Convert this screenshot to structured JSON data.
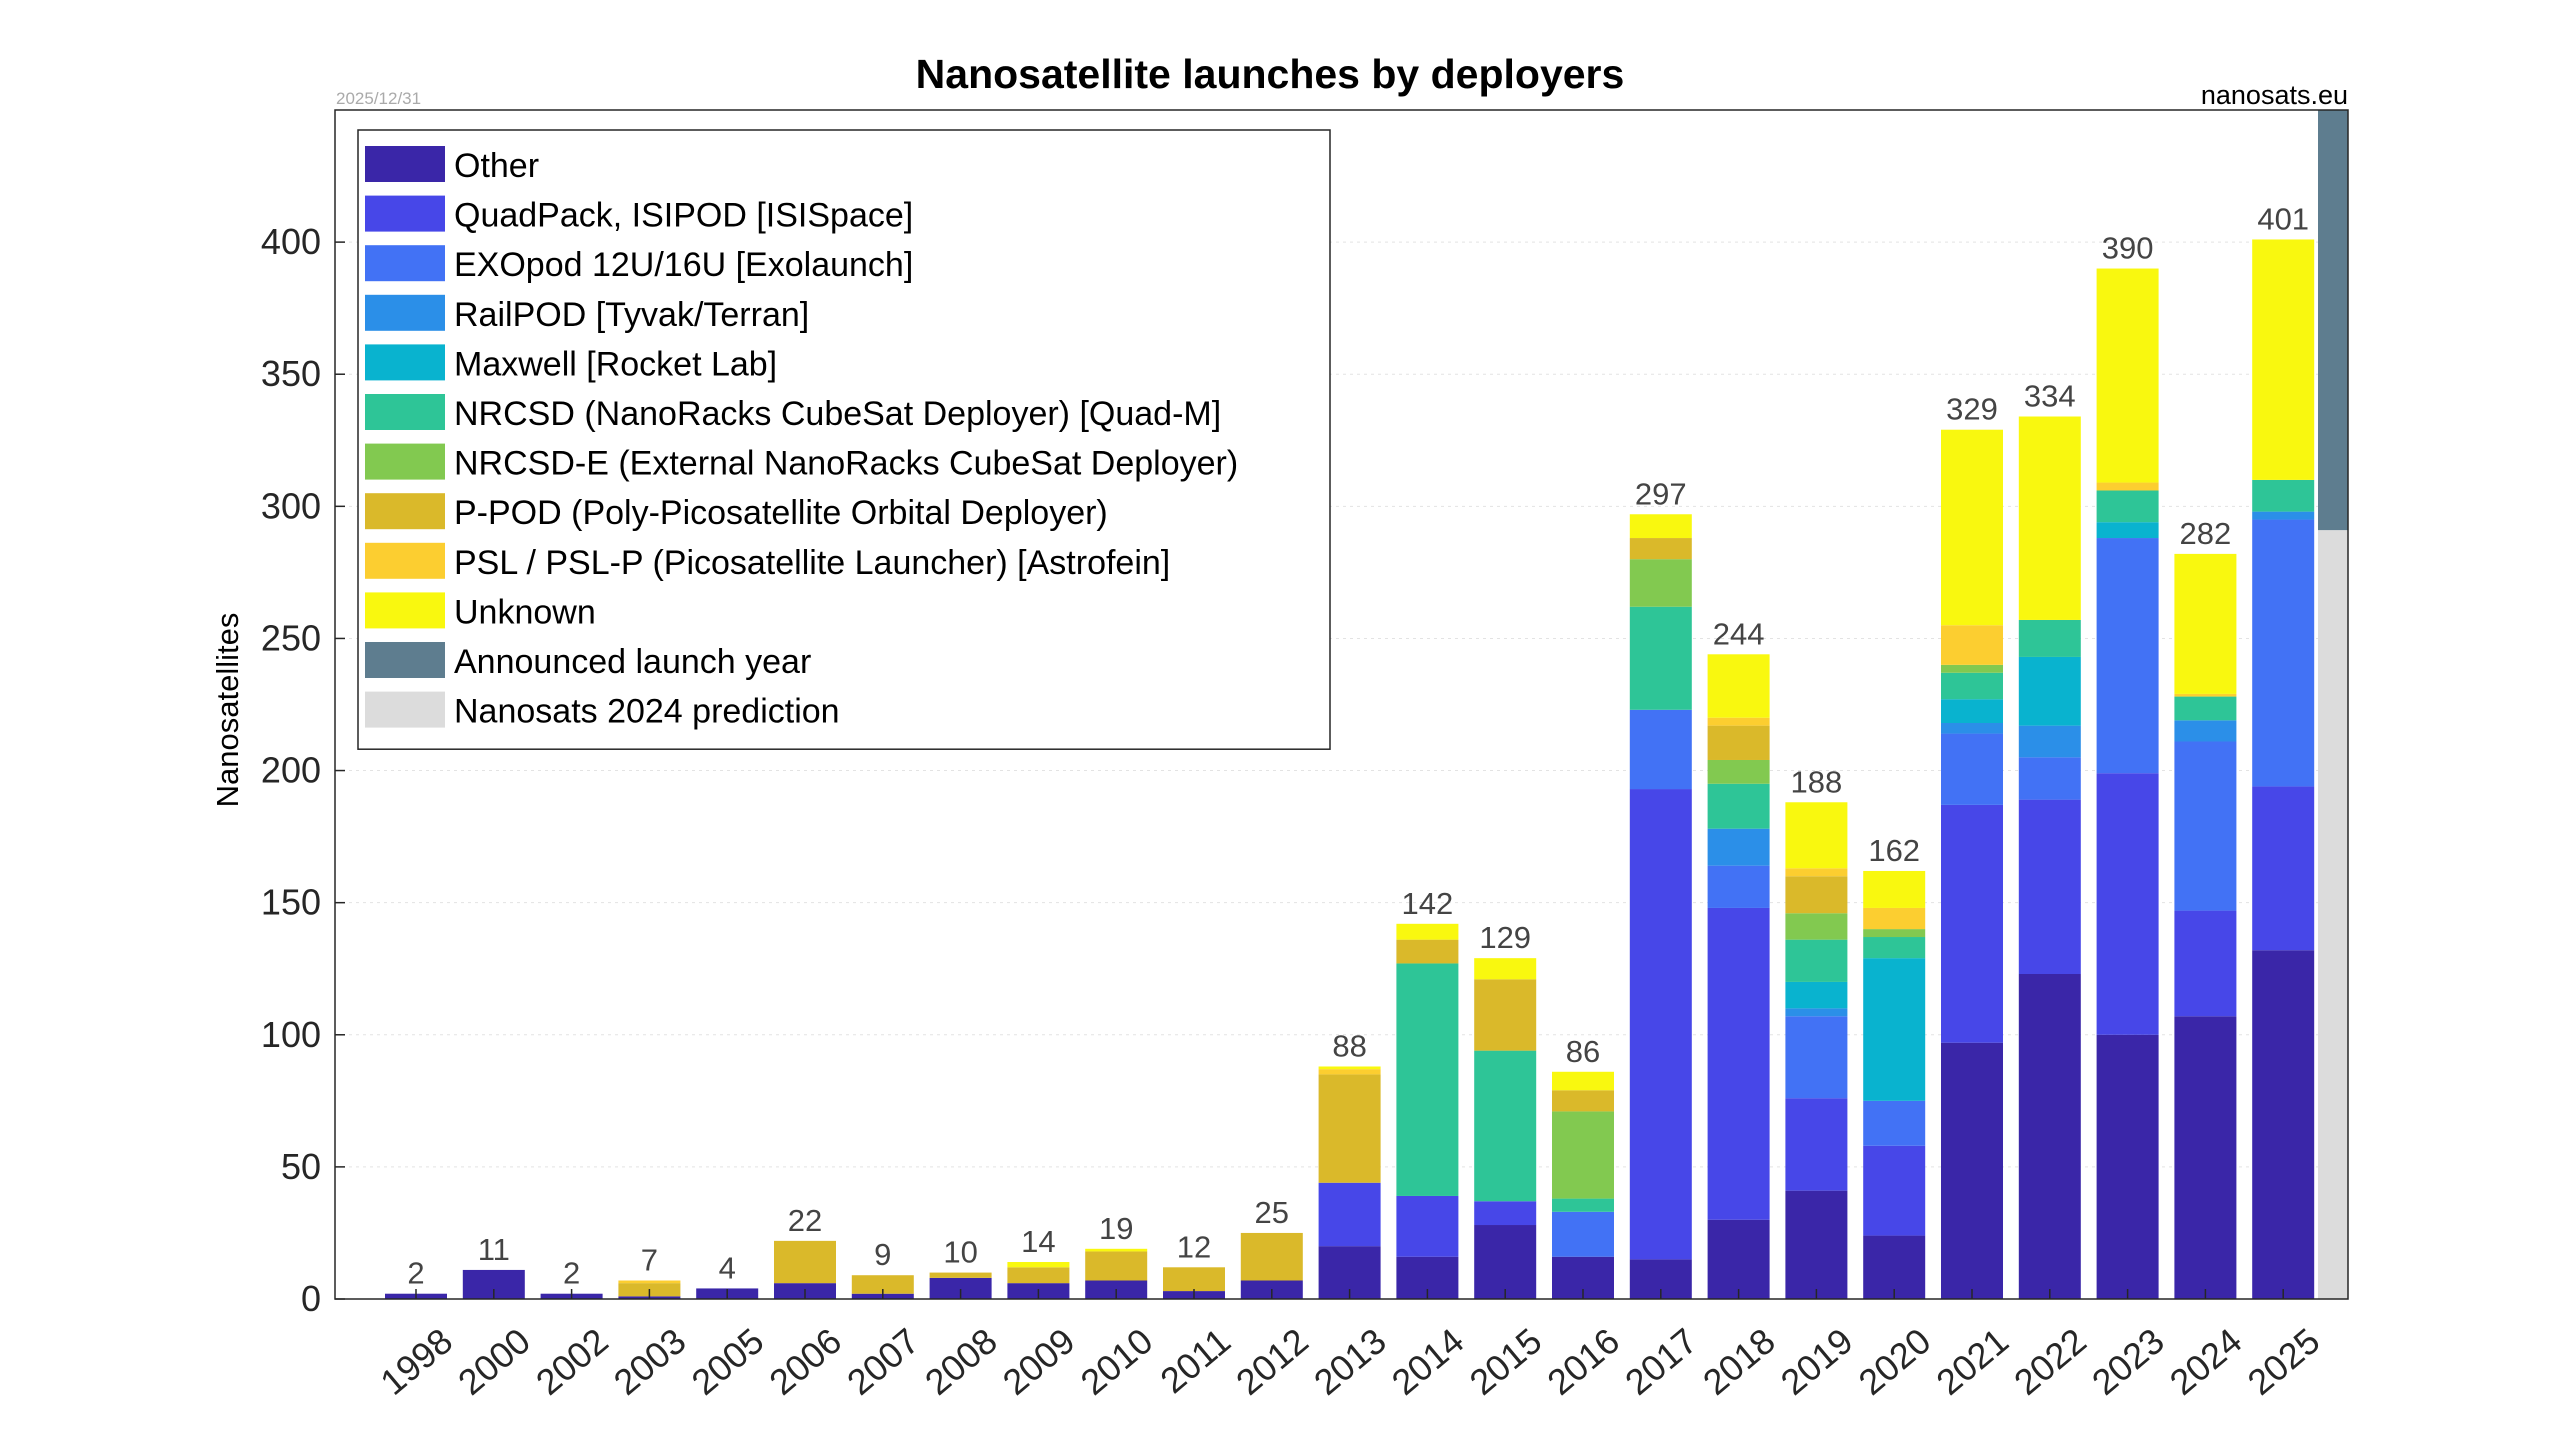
{
  "date": "2025/12/31",
  "source": "nanosats.eu",
  "chart_data": {
    "type": "bar",
    "stacked": true,
    "title": "Nanosatellite launches by deployers",
    "xlabel": "",
    "ylabel": "Nanosatellites",
    "ylim": [
      0,
      450
    ],
    "yticks": [
      0,
      50,
      100,
      150,
      200,
      250,
      300,
      350,
      400
    ],
    "grid": true,
    "legend_position": "top-left",
    "categories": [
      "1998",
      "2000",
      "2002",
      "2003",
      "2005",
      "2006",
      "2007",
      "2008",
      "2009",
      "2010",
      "2011",
      "2012",
      "2013",
      "2014",
      "2015",
      "2016",
      "2017",
      "2018",
      "2019",
      "2020",
      "2021",
      "2022",
      "2023",
      "2024",
      "2025"
    ],
    "totals": [
      2,
      11,
      2,
      7,
      4,
      22,
      9,
      10,
      14,
      19,
      12,
      25,
      88,
      142,
      129,
      86,
      297,
      244,
      188,
      162,
      329,
      334,
      390,
      282,
      401
    ],
    "series": [
      {
        "name": "Other",
        "color": "#3a26a8",
        "values": [
          2,
          11,
          2,
          1,
          4,
          6,
          2,
          8,
          6,
          7,
          3,
          7,
          20,
          16,
          28,
          16,
          15,
          30,
          41,
          24,
          97,
          123,
          100,
          107,
          132
        ]
      },
      {
        "name": "QuadPack, ISIPOD [ISISpace]",
        "color": "#4747e8",
        "values": [
          0,
          0,
          0,
          0,
          0,
          0,
          0,
          0,
          0,
          0,
          0,
          0,
          24,
          23,
          9,
          0,
          178,
          118,
          35,
          34,
          90,
          66,
          99,
          40,
          62
        ]
      },
      {
        "name": "EXOpod 12U/16U [Exolaunch]",
        "color": "#4272f5",
        "values": [
          0,
          0,
          0,
          0,
          0,
          0,
          0,
          0,
          0,
          0,
          0,
          0,
          0,
          0,
          0,
          17,
          30,
          16,
          31,
          17,
          27,
          16,
          89,
          64,
          101
        ]
      },
      {
        "name": "RailPOD [Tyvak/Terran]",
        "color": "#2b8fe8",
        "values": [
          0,
          0,
          0,
          0,
          0,
          0,
          0,
          0,
          0,
          0,
          0,
          0,
          0,
          0,
          0,
          0,
          0,
          14,
          3,
          0,
          4,
          12,
          0,
          8,
          3
        ]
      },
      {
        "name": "Maxwell [Rocket Lab]",
        "color": "#09b3cf",
        "values": [
          0,
          0,
          0,
          0,
          0,
          0,
          0,
          0,
          0,
          0,
          0,
          0,
          0,
          0,
          0,
          0,
          0,
          0,
          10,
          54,
          9,
          26,
          6,
          0,
          0
        ]
      },
      {
        "name": "NRCSD (NanoRacks CubeSat Deployer)  [Quad-M]",
        "color": "#2ec597",
        "values": [
          0,
          0,
          0,
          0,
          0,
          0,
          0,
          0,
          0,
          0,
          0,
          0,
          0,
          88,
          57,
          5,
          39,
          17,
          16,
          8,
          10,
          14,
          12,
          9,
          12
        ]
      },
      {
        "name": "NRCSD-E (External NanoRacks CubeSat Deployer)",
        "color": "#82c950",
        "values": [
          0,
          0,
          0,
          0,
          0,
          0,
          0,
          0,
          0,
          0,
          0,
          0,
          0,
          0,
          0,
          33,
          18,
          9,
          10,
          3,
          3,
          0,
          0,
          0,
          0
        ]
      },
      {
        "name": "P-POD (Poly-Picosatellite Orbital Deployer)",
        "color": "#dab92a",
        "values": [
          0,
          0,
          0,
          5,
          0,
          16,
          7,
          2,
          6,
          11,
          9,
          18,
          41,
          9,
          27,
          8,
          8,
          13,
          14,
          0,
          0,
          0,
          0,
          0,
          0
        ]
      },
      {
        "name": "PSL / PSL-P (Picosatellite Launcher) [Astrofein]",
        "color": "#fcce30",
        "values": [
          0,
          0,
          0,
          1,
          0,
          0,
          0,
          0,
          0,
          0,
          0,
          0,
          2,
          0,
          0,
          0,
          0,
          3,
          3,
          8,
          15,
          0,
          3,
          1,
          0
        ]
      },
      {
        "name": "Unknown",
        "color": "#f9f80f",
        "values": [
          0,
          0,
          0,
          0,
          0,
          0,
          0,
          0,
          2,
          1,
          0,
          0,
          1,
          6,
          8,
          7,
          9,
          24,
          25,
          14,
          74,
          77,
          81,
          53,
          91
        ]
      },
      {
        "name": "Announced launch year",
        "color": "#5e7d8f",
        "values": [
          0,
          0,
          0,
          0,
          0,
          0,
          0,
          0,
          0,
          0,
          0,
          0,
          0,
          0,
          0,
          0,
          0,
          0,
          0,
          0,
          0,
          0,
          0,
          0,
          0
        ]
      },
      {
        "name": "Nanosats 2024 prediction",
        "color": "#dcdcdc",
        "values": [
          0,
          0,
          0,
          0,
          0,
          0,
          0,
          0,
          0,
          0,
          0,
          0,
          0,
          0,
          0,
          0,
          0,
          0,
          0,
          0,
          0,
          0,
          0,
          0,
          0
        ]
      }
    ],
    "edge_column": {
      "announced_launch_year_top": 450,
      "announced_launch_year_bottom": 291,
      "prediction_top": 291,
      "prediction_bottom": 0
    }
  }
}
